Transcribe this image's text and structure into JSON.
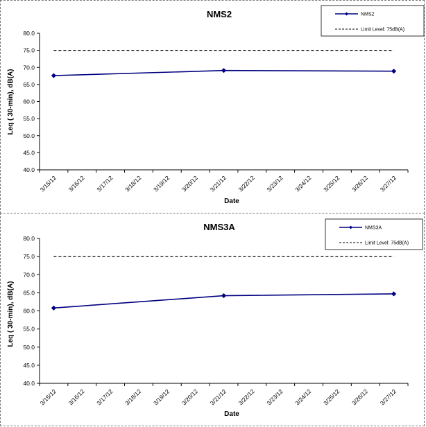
{
  "chart_data": [
    {
      "type": "line",
      "title": "NMS2",
      "xlabel": "Date",
      "ylabel": "Leq ( 30-min), dB(A)",
      "ylim": [
        40.0,
        80.0
      ],
      "yticks": [
        "40.0",
        "45.0",
        "50.0",
        "55.0",
        "60.0",
        "65.0",
        "70.0",
        "75.0",
        "80.0"
      ],
      "categories": [
        "3/15/12",
        "3/16/12",
        "3/17/12",
        "3/18/12",
        "3/19/12",
        "3/20/12",
        "3/21/12",
        "3/22/12",
        "3/23/12",
        "3/24/12",
        "3/25/12",
        "3/26/12",
        "3/27/12"
      ],
      "grid": false,
      "legend_position": "top-right",
      "series": [
        {
          "name": "NMS2",
          "color": "#000080",
          "marker": "diamond",
          "style": "solid",
          "x": [
            "3/15/12",
            "3/21/12",
            "3/27/12"
          ],
          "y": [
            67.6,
            69.1,
            68.9
          ]
        },
        {
          "name": "Limit Level: 75dB(A)",
          "color": "#000000",
          "style": "dashed",
          "x": [
            "3/15/12",
            "3/27/12"
          ],
          "y": [
            75.0,
            75.0
          ]
        }
      ]
    },
    {
      "type": "line",
      "title": "NMS3A",
      "xlabel": "Date",
      "ylabel": "Leq ( 30-min), dB(A)",
      "ylim": [
        40.0,
        80.0
      ],
      "yticks": [
        "40.0",
        "45.0",
        "50.0",
        "55.0",
        "60.0",
        "65.0",
        "70.0",
        "75.0",
        "80.0"
      ],
      "categories": [
        "3/15/12",
        "3/16/12",
        "3/17/12",
        "3/18/12",
        "3/19/12",
        "3/20/12",
        "3/21/12",
        "3/22/12",
        "3/23/12",
        "3/24/12",
        "3/25/12",
        "3/26/12",
        "3/27/12"
      ],
      "grid": false,
      "legend_position": "top-right",
      "series": [
        {
          "name": "NMS3A",
          "color": "#000080",
          "marker": "diamond",
          "style": "solid",
          "x": [
            "3/15/12",
            "3/21/12",
            "3/27/12"
          ],
          "y": [
            60.8,
            64.2,
            64.7
          ]
        },
        {
          "name": "Limit Level: 75dB(A)",
          "color": "#000000",
          "style": "dashed",
          "x": [
            "3/15/12",
            "3/27/12"
          ],
          "y": [
            75.0,
            75.0
          ]
        }
      ]
    }
  ]
}
